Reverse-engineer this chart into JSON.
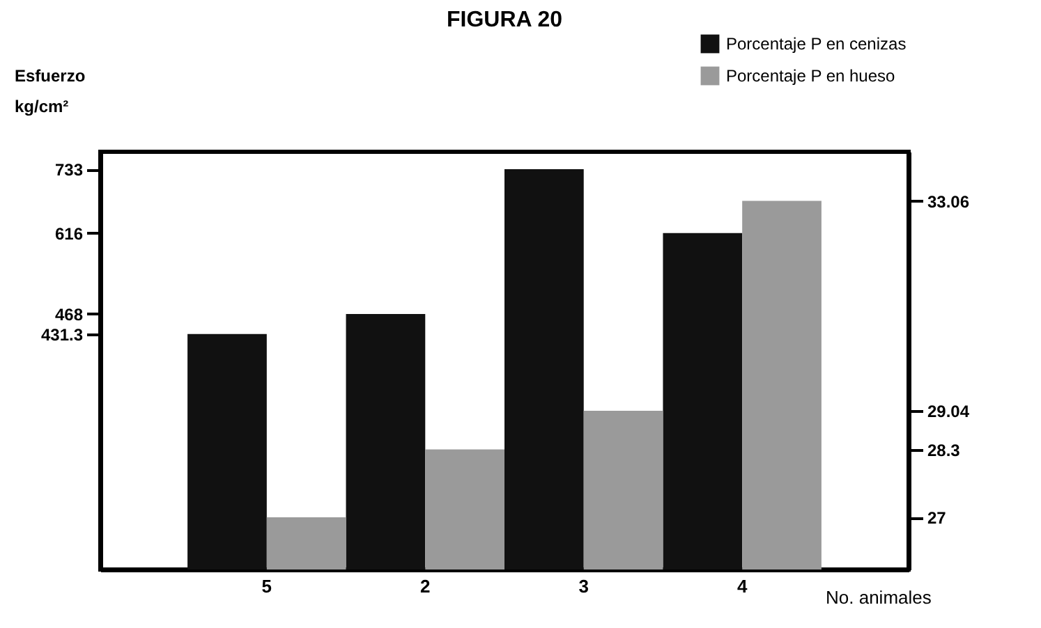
{
  "chart_data": {
    "type": "bar",
    "title": "FIGURA 20",
    "ylabel": "Esfuerzo kg/cm²",
    "xlabel": "No. animales",
    "categories": [
      "5",
      "2",
      "3",
      "4"
    ],
    "series": [
      {
        "name": "Porcentaje P en cenizas",
        "color": "#111111",
        "values": [
          431.3,
          468,
          733,
          616
        ]
      },
      {
        "name": "Porcentaje P en hueso",
        "color": "#9a9a9a",
        "axis": "y2",
        "values": [
          27,
          28.3,
          29.04,
          33.06
        ]
      }
    ],
    "ylim": [
      0,
      765
    ],
    "yticks": [
      431.3,
      468,
      616,
      733
    ],
    "y2lim": [
      26,
      34
    ],
    "y2ticks": [
      27,
      28.3,
      33.06,
      29.04
    ],
    "legend": "top right"
  }
}
